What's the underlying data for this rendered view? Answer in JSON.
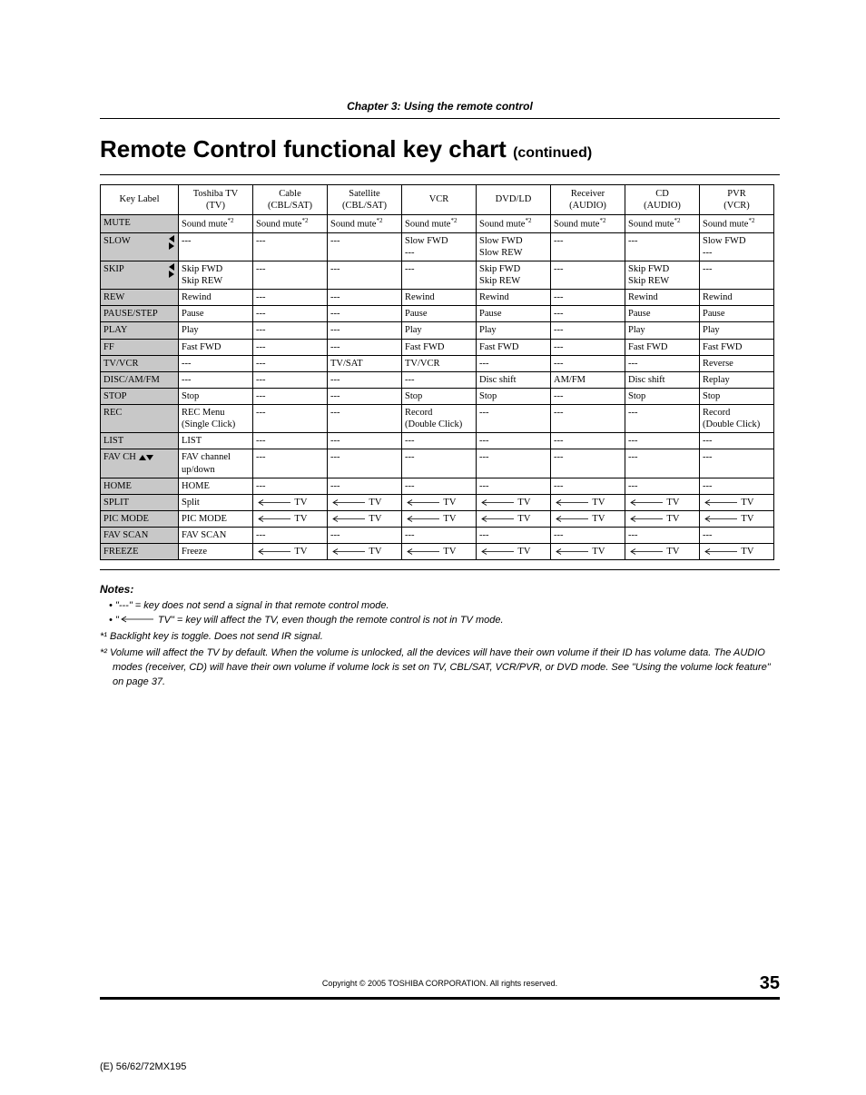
{
  "chapter": "Chapter 3: Using the remote control",
  "title_main": "Remote Control functional key chart",
  "title_cont": "(continued)",
  "columns": [
    {
      "line1": "Key Label",
      "line2": ""
    },
    {
      "line1": "Toshiba TV",
      "line2": "(TV)"
    },
    {
      "line1": "Cable",
      "line2": "(CBL/SAT)"
    },
    {
      "line1": "Satellite",
      "line2": "(CBL/SAT)"
    },
    {
      "line1": "VCR",
      "line2": ""
    },
    {
      "line1": "DVD/LD",
      "line2": ""
    },
    {
      "line1": "Receiver",
      "line2": "(AUDIO)"
    },
    {
      "line1": "CD",
      "line2": "(AUDIO)"
    },
    {
      "line1": "PVR",
      "line2": "(VCR)"
    }
  ],
  "sound_mute": "Sound mute",
  "arrow_tv": "TV",
  "dash": "---",
  "rows": [
    {
      "key": "MUTE",
      "tri": null,
      "cells": [
        "SM",
        "SM",
        "SM",
        "SM",
        "SM",
        "SM",
        "SM",
        "SM"
      ]
    },
    {
      "key": "SLOW",
      "tri": "lr",
      "cells": [
        "---",
        "---",
        "---",
        [
          "Slow FWD",
          "---"
        ],
        [
          "Slow FWD",
          "Slow REW"
        ],
        "---",
        "---",
        [
          "Slow FWD",
          "---"
        ]
      ]
    },
    {
      "key": "SKIP",
      "tri": "lr",
      "cells": [
        [
          "Skip FWD",
          "Skip REW"
        ],
        "---",
        "---",
        "---",
        [
          "Skip FWD",
          "Skip REW"
        ],
        "---",
        [
          "Skip FWD",
          "Skip REW"
        ],
        "---"
      ]
    },
    {
      "key": "REW",
      "tri": null,
      "cells": [
        "Rewind",
        "---",
        "---",
        "Rewind",
        "Rewind",
        "---",
        "Rewind",
        "Rewind"
      ]
    },
    {
      "key": "PAUSE/STEP",
      "tri": null,
      "cells": [
        "Pause",
        "---",
        "---",
        "Pause",
        "Pause",
        "---",
        "Pause",
        "Pause"
      ]
    },
    {
      "key": "PLAY",
      "tri": null,
      "cells": [
        "Play",
        "---",
        "---",
        "Play",
        "Play",
        "---",
        "Play",
        "Play"
      ]
    },
    {
      "key": "FF",
      "tri": null,
      "cells": [
        "Fast FWD",
        "---",
        "---",
        "Fast FWD",
        "Fast FWD",
        "---",
        "Fast FWD",
        "Fast FWD"
      ]
    },
    {
      "key": "TV/VCR",
      "tri": null,
      "cells": [
        "---",
        "---",
        "TV/SAT",
        "TV/VCR",
        "---",
        "---",
        "---",
        "Reverse"
      ]
    },
    {
      "key": "DISC/AM/FM",
      "tri": null,
      "cells": [
        "---",
        "---",
        "---",
        "---",
        "Disc shift",
        "AM/FM",
        "Disc shift",
        "Replay"
      ]
    },
    {
      "key": "STOP",
      "tri": null,
      "cells": [
        "Stop",
        "---",
        "---",
        "Stop",
        "Stop",
        "---",
        "Stop",
        "Stop"
      ]
    },
    {
      "key": "REC",
      "tri": null,
      "cells": [
        [
          "REC Menu",
          "(Single Click)"
        ],
        "---",
        "---",
        [
          "Record",
          "(Double Click)"
        ],
        "---",
        "---",
        "---",
        [
          "Record",
          "(Double Click)"
        ]
      ]
    },
    {
      "key": "LIST",
      "tri": null,
      "cells": [
        "LIST",
        "---",
        "---",
        "---",
        "---",
        "---",
        "---",
        "---"
      ]
    },
    {
      "key": "FAV CH",
      "tri": "ud",
      "cells": [
        [
          "FAV channel",
          "up/down"
        ],
        "---",
        "---",
        "---",
        "---",
        "---",
        "---",
        "---"
      ]
    },
    {
      "key": "HOME",
      "tri": null,
      "cells": [
        "HOME",
        "---",
        "---",
        "---",
        "---",
        "---",
        "---",
        "---"
      ]
    },
    {
      "key": "SPLIT",
      "tri": null,
      "cells": [
        "Split",
        "ARR",
        "ARR",
        "ARR",
        "ARR",
        "ARR",
        "ARR",
        "ARR"
      ]
    },
    {
      "key": "PIC MODE",
      "tri": null,
      "cells": [
        "PIC MODE",
        "ARR",
        "ARR",
        "ARR",
        "ARR",
        "ARR",
        "ARR",
        "ARR"
      ]
    },
    {
      "key": "FAV SCAN",
      "tri": null,
      "cells": [
        "FAV SCAN",
        "---",
        "---",
        "---",
        "---",
        "---",
        "---",
        "---"
      ]
    },
    {
      "key": "FREEZE",
      "tri": null,
      "cells": [
        "Freeze",
        "ARR",
        "ARR",
        "ARR",
        "ARR",
        "ARR",
        "ARR",
        "ARR"
      ]
    }
  ],
  "notes_head": "Notes:",
  "note1_a": "\"---\" = key does not send a signal in that remote control mode.",
  "note2_a": "\"",
  "note2_b": " TV\" = key will affect the TV, even though the remote control is not in TV mode.",
  "star1": "*¹ Backlight key is toggle. Does not send IR signal.",
  "star2_a": "*² Volume will affect the TV by default. When the volume is unlocked, all the devices will have their own volume if their ID has volume data. The AUDIO modes (receiver, CD) will have their own volume if volume lock is set on TV, CBL/SAT, VCR/PVR, or DVD mode. See \"Using the volume lock feature\" on page 37.",
  "copyright": "Copyright © 2005 TOSHIBA CORPORATION. All rights reserved.",
  "page_number": "35",
  "model": "(E) 56/62/72MX195"
}
